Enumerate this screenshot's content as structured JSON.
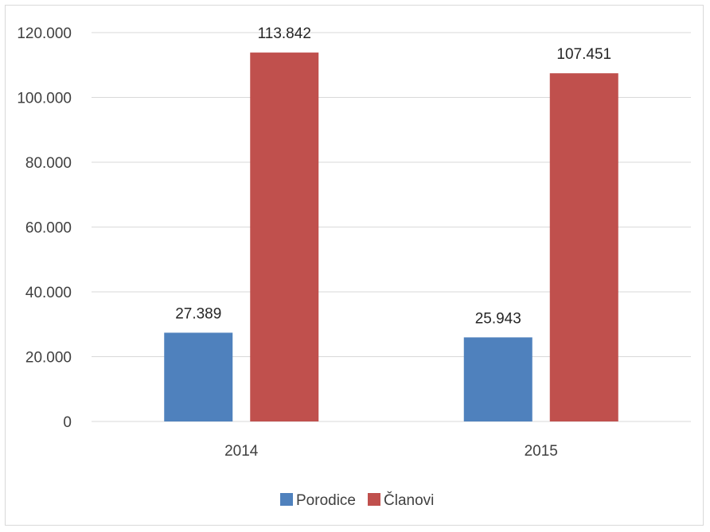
{
  "chart_data": {
    "type": "bar",
    "categories": [
      "2014",
      "2015"
    ],
    "series": [
      {
        "name": "Porodice",
        "values": [
          27389,
          25943
        ],
        "labels": [
          "27.389",
          "25.943"
        ],
        "color": "#4f81bd"
      },
      {
        "name": "Članovi",
        "values": [
          113842,
          107451
        ],
        "labels": [
          "113.842",
          "107.451"
        ],
        "color": "#c0504d"
      }
    ],
    "ylim": [
      0,
      120000
    ],
    "yticks": [
      0,
      20000,
      40000,
      60000,
      80000,
      100000,
      120000
    ],
    "ytick_labels": [
      "0",
      "20.000",
      "40.000",
      "60.000",
      "80.000",
      "100.000",
      "120.000"
    ],
    "grid": true,
    "legend_position": "bottom",
    "title": "",
    "xlabel": "",
    "ylabel": ""
  },
  "colors": {
    "gridline": "#d9d9d9",
    "text": "#404040"
  }
}
